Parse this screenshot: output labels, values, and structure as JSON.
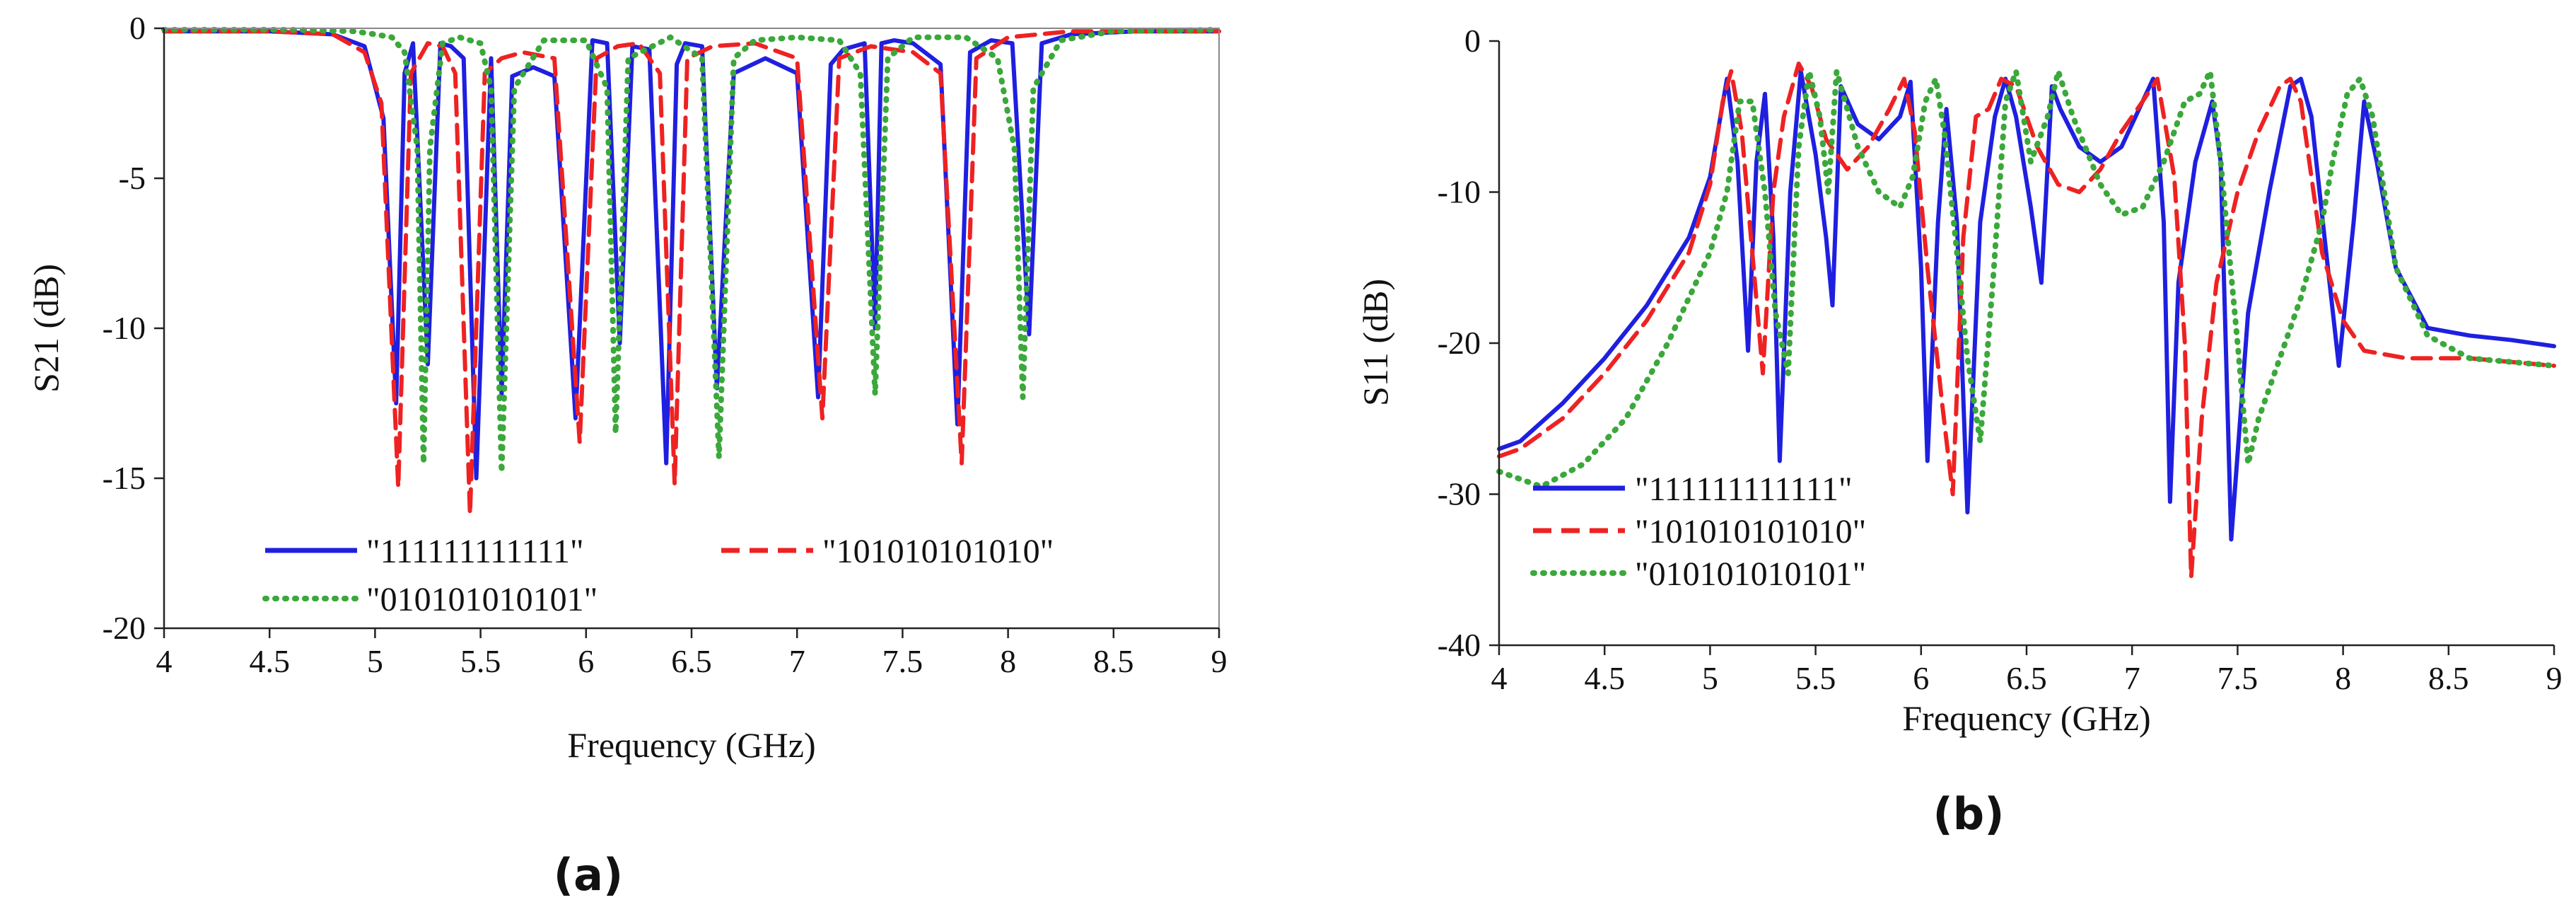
{
  "colors": {
    "series_1": "#1f1fe0",
    "series_2": "#ee2222",
    "series_3": "#3aa83a"
  },
  "chart_data": [
    {
      "type": "line",
      "panel_label": "(a)",
      "title": "",
      "xlabel": "Frequency (GHz)",
      "ylabel": "S21 (dB)",
      "xlim": [
        4,
        9
      ],
      "ylim": [
        -20,
        0
      ],
      "x_ticks": [
        "4",
        "4.5",
        "5",
        "5.5",
        "6",
        "6.5",
        "7",
        "7.5",
        "8",
        "8.5",
        "9"
      ],
      "y_ticks": [
        "0",
        "-5",
        "-10",
        "-15",
        "-20"
      ],
      "legend_position": "bottom-center",
      "series": [
        {
          "name": "\"111111111111\"",
          "style": "solid",
          "color": "#1f1fe0",
          "x": [
            4.0,
            4.5,
            4.8,
            4.95,
            5.04,
            5.1,
            5.14,
            5.18,
            5.25,
            5.31,
            5.36,
            5.42,
            5.48,
            5.55,
            5.6,
            5.65,
            5.75,
            5.85,
            5.95,
            6.03,
            6.1,
            6.16,
            6.22,
            6.3,
            6.38,
            6.43,
            6.47,
            6.55,
            6.62,
            6.7,
            6.85,
            7.0,
            7.1,
            7.16,
            7.22,
            7.32,
            7.37,
            7.4,
            7.46,
            7.55,
            7.68,
            7.76,
            7.82,
            7.92,
            8.02,
            8.1,
            8.16,
            8.3,
            8.6,
            9.0
          ],
          "y": [
            -0.1,
            -0.1,
            -0.2,
            -0.6,
            -3.0,
            -12.5,
            -1.5,
            -0.5,
            -11.2,
            -0.5,
            -0.6,
            -1.0,
            -15.0,
            -1.0,
            -12.2,
            -1.6,
            -1.3,
            -1.6,
            -13.0,
            -0.4,
            -0.5,
            -10.5,
            -0.6,
            -0.7,
            -14.5,
            -1.2,
            -0.5,
            -0.6,
            -12.0,
            -1.5,
            -1.0,
            -1.5,
            -12.3,
            -1.2,
            -0.7,
            -0.5,
            -10.0,
            -0.5,
            -0.4,
            -0.5,
            -1.2,
            -13.2,
            -0.8,
            -0.4,
            -0.5,
            -10.2,
            -0.5,
            -0.2,
            -0.1,
            -0.1
          ]
        },
        {
          "name": "\"101010101010\"",
          "style": "dashed",
          "color": "#ee2222",
          "x": [
            4.0,
            4.5,
            4.8,
            4.95,
            5.03,
            5.11,
            5.17,
            5.25,
            5.32,
            5.38,
            5.45,
            5.52,
            5.6,
            5.7,
            5.85,
            5.97,
            6.05,
            6.15,
            6.25,
            6.35,
            6.42,
            6.48,
            6.6,
            6.8,
            7.0,
            7.12,
            7.2,
            7.35,
            7.55,
            7.68,
            7.78,
            7.85,
            8.0,
            8.3,
            9.0
          ],
          "y": [
            -0.1,
            -0.1,
            -0.2,
            -0.8,
            -2.5,
            -15.3,
            -1.5,
            -0.5,
            -0.6,
            -1.5,
            -16.2,
            -1.5,
            -1.0,
            -0.8,
            -1.0,
            -13.8,
            -1.0,
            -0.6,
            -0.5,
            -1.5,
            -15.2,
            -1.0,
            -0.6,
            -0.5,
            -1.0,
            -13.0,
            -1.0,
            -0.6,
            -0.8,
            -1.5,
            -14.5,
            -1.0,
            -0.3,
            -0.1,
            -0.1
          ]
        },
        {
          "name": "\"010101010101\"",
          "style": "dotted",
          "color": "#3aa83a",
          "x": [
            4.0,
            4.6,
            4.9,
            5.0,
            5.08,
            5.14,
            5.2,
            5.23,
            5.26,
            5.32,
            5.4,
            5.5,
            5.55,
            5.6,
            5.66,
            5.8,
            6.0,
            6.1,
            6.14,
            6.2,
            6.4,
            6.55,
            6.63,
            6.7,
            6.8,
            7.0,
            7.2,
            7.3,
            7.37,
            7.43,
            7.55,
            7.8,
            7.95,
            8.03,
            8.07,
            8.12,
            8.25,
            8.5,
            9.0
          ],
          "y": [
            -0.05,
            -0.05,
            -0.1,
            -0.2,
            -0.3,
            -0.8,
            -4.0,
            -14.5,
            -4.0,
            -0.5,
            -0.3,
            -0.5,
            -2.0,
            -14.8,
            -2.0,
            -0.4,
            -0.4,
            -2.0,
            -13.5,
            -1.0,
            -0.3,
            -1.0,
            -14.3,
            -1.0,
            -0.4,
            -0.3,
            -0.4,
            -1.5,
            -12.2,
            -1.0,
            -0.3,
            -0.3,
            -1.0,
            -4.0,
            -12.3,
            -2.0,
            -0.4,
            -0.1,
            -0.05
          ]
        }
      ]
    },
    {
      "type": "line",
      "panel_label": "(b)",
      "title": "",
      "xlabel": "Frequency (GHz)",
      "ylabel": "S11 (dB)",
      "xlim": [
        4,
        9
      ],
      "ylim": [
        -40,
        0
      ],
      "x_ticks": [
        "4",
        "4.5",
        "5",
        "5.5",
        "6",
        "6.5",
        "7",
        "7.5",
        "8",
        "8.5",
        "9"
      ],
      "y_ticks": [
        "0",
        "-10",
        "-20",
        "-30",
        "-40"
      ],
      "legend_position": "bottom-left",
      "series": [
        {
          "name": "\"111111111111\"",
          "style": "solid",
          "color": "#1f1fe0",
          "x": [
            4.0,
            4.1,
            4.3,
            4.5,
            4.7,
            4.9,
            5.0,
            5.08,
            5.13,
            5.18,
            5.22,
            5.26,
            5.3,
            5.33,
            5.38,
            5.43,
            5.5,
            5.55,
            5.58,
            5.62,
            5.7,
            5.8,
            5.9,
            5.95,
            6.0,
            6.03,
            6.08,
            6.12,
            6.17,
            6.22,
            6.28,
            6.35,
            6.4,
            6.45,
            6.52,
            6.57,
            6.62,
            6.66,
            6.75,
            6.85,
            6.95,
            7.05,
            7.1,
            7.15,
            7.18,
            7.22,
            7.3,
            7.38,
            7.42,
            7.47,
            7.55,
            7.65,
            7.75,
            7.8,
            7.85,
            7.92,
            7.98,
            8.05,
            8.1,
            8.16,
            8.25,
            8.4,
            8.6,
            8.8,
            9.0
          ],
          "y": [
            -27.0,
            -26.5,
            -24.0,
            -21.0,
            -17.5,
            -13.0,
            -9.0,
            -2.5,
            -8.0,
            -20.5,
            -8.0,
            -3.5,
            -13.0,
            -27.8,
            -10.0,
            -2.0,
            -7.5,
            -13.0,
            -17.5,
            -3.0,
            -5.5,
            -6.5,
            -5.0,
            -2.7,
            -15.0,
            -27.8,
            -12.0,
            -4.5,
            -12.0,
            -31.2,
            -12.0,
            -5.0,
            -2.5,
            -5.0,
            -11.0,
            -16.0,
            -3.0,
            -4.5,
            -7.0,
            -8.0,
            -7.0,
            -4.0,
            -2.5,
            -12.0,
            -30.5,
            -16.0,
            -8.0,
            -4.0,
            -8.0,
            -33.0,
            -18.0,
            -10.0,
            -3.0,
            -2.5,
            -5.0,
            -14.0,
            -21.5,
            -12.0,
            -4.0,
            -8.0,
            -15.0,
            -19.0,
            -19.5,
            -19.8,
            -20.2
          ]
        },
        {
          "name": "\"101010101010\"",
          "style": "dashed",
          "color": "#ee2222",
          "x": [
            4.0,
            4.1,
            4.3,
            4.5,
            4.7,
            4.9,
            5.0,
            5.06,
            5.1,
            5.15,
            5.2,
            5.25,
            5.3,
            5.35,
            5.42,
            5.48,
            5.55,
            5.65,
            5.75,
            5.85,
            5.92,
            5.97,
            6.03,
            6.1,
            6.15,
            6.2,
            6.26,
            6.32,
            6.38,
            6.45,
            6.55,
            6.65,
            6.75,
            6.85,
            6.95,
            7.05,
            7.12,
            7.2,
            7.25,
            7.28,
            7.33,
            7.4,
            7.5,
            7.6,
            7.7,
            7.75,
            7.8,
            7.9,
            8.0,
            8.1,
            8.3,
            8.6,
            9.0
          ],
          "y": [
            -27.5,
            -27.0,
            -25.0,
            -22.0,
            -18.5,
            -14.0,
            -9.5,
            -4.0,
            -2.0,
            -6.0,
            -14.0,
            -22.0,
            -10.0,
            -5.0,
            -1.5,
            -3.0,
            -6.5,
            -8.5,
            -7.0,
            -4.5,
            -2.5,
            -6.0,
            -15.0,
            -24.0,
            -30.0,
            -13.0,
            -5.0,
            -4.5,
            -2.5,
            -3.0,
            -7.0,
            -9.5,
            -10.0,
            -8.5,
            -6.0,
            -4.0,
            -2.5,
            -9.0,
            -20.0,
            -35.5,
            -25.0,
            -16.0,
            -10.0,
            -6.0,
            -3.0,
            -2.5,
            -4.0,
            -14.0,
            -18.5,
            -20.5,
            -21.0,
            -21.0,
            -21.5
          ]
        },
        {
          "name": "\"010101010101\"",
          "style": "dotted",
          "color": "#3aa83a",
          "x": [
            4.0,
            4.2,
            4.4,
            4.6,
            4.8,
            5.0,
            5.08,
            5.14,
            5.2,
            5.26,
            5.31,
            5.37,
            5.42,
            5.47,
            5.52,
            5.56,
            5.6,
            5.7,
            5.8,
            5.9,
            5.96,
            6.02,
            6.07,
            6.11,
            6.17,
            6.22,
            6.28,
            6.34,
            6.4,
            6.45,
            6.52,
            6.6,
            6.65,
            6.72,
            6.85,
            6.95,
            7.05,
            7.15,
            7.25,
            7.32,
            7.37,
            7.42,
            7.5,
            7.55,
            7.6,
            7.7,
            7.8,
            7.9,
            7.95,
            8.02,
            8.08,
            8.14,
            8.25,
            8.4,
            8.6,
            9.0
          ],
          "y": [
            -28.5,
            -29.5,
            -28.0,
            -25.0,
            -20.0,
            -14.0,
            -10.0,
            -4.0,
            -4.0,
            -10.0,
            -18.0,
            -22.0,
            -7.0,
            -2.0,
            -5.0,
            -10.0,
            -2.0,
            -7.0,
            -10.0,
            -11.0,
            -9.0,
            -4.0,
            -2.5,
            -6.0,
            -14.0,
            -21.0,
            -26.5,
            -16.0,
            -4.0,
            -2.0,
            -8.0,
            -5.0,
            -2.0,
            -5.0,
            -9.5,
            -11.5,
            -11.0,
            -8.0,
            -4.0,
            -3.5,
            -2.0,
            -8.0,
            -20.0,
            -28.0,
            -25.0,
            -21.0,
            -17.0,
            -12.0,
            -8.0,
            -3.5,
            -2.5,
            -5.0,
            -15.0,
            -19.5,
            -21.0,
            -21.5
          ]
        }
      ]
    }
  ]
}
